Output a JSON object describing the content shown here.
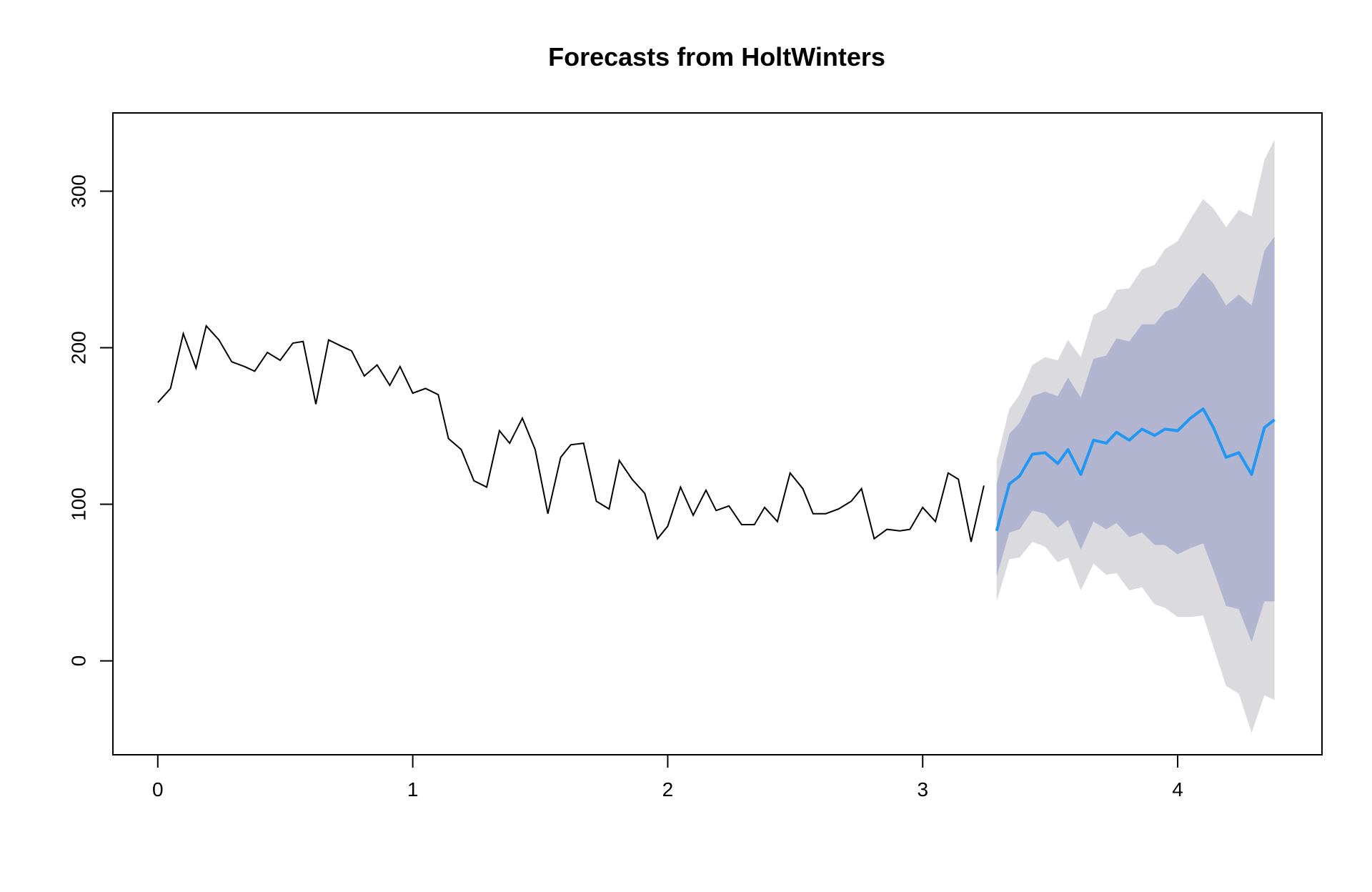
{
  "chart_data": {
    "type": "line",
    "title": "Forecasts from HoltWinters",
    "xlabel": "",
    "ylabel": "",
    "xlim": [
      -0.176,
      4.566
    ],
    "ylim": [
      -60,
      350
    ],
    "x_ticks": [
      0,
      1,
      2,
      3,
      4
    ],
    "y_ticks": [
      0,
      100,
      200,
      300
    ],
    "grid": false,
    "legend": "none",
    "colors": {
      "observed": "#000000",
      "forecast": "#2196F3",
      "band80": "#B1B5CF",
      "band95": "#DBDBDF"
    },
    "series": [
      {
        "role": "observed",
        "x": [
          0.0,
          0.05,
          0.1,
          0.15,
          0.19,
          0.24,
          0.29,
          0.34,
          0.38,
          0.43,
          0.48,
          0.53,
          0.57,
          0.62,
          0.67,
          0.72,
          0.76,
          0.81,
          0.86,
          0.91,
          0.95,
          1.0,
          1.05,
          1.1,
          1.14,
          1.19,
          1.24,
          1.29,
          1.34,
          1.38,
          1.43,
          1.48,
          1.53,
          1.58,
          1.62,
          1.67,
          1.72,
          1.77,
          1.81,
          1.86,
          1.91,
          1.96,
          2.0,
          2.05,
          2.1,
          2.15,
          2.19,
          2.24,
          2.29,
          2.34,
          2.38,
          2.43,
          2.48,
          2.53,
          2.57,
          2.62,
          2.67,
          2.72,
          2.76,
          2.81,
          2.86,
          2.91,
          2.95,
          3.0,
          3.05,
          3.1,
          3.14,
          3.19,
          3.24
        ],
        "values": [
          165,
          174,
          209,
          187,
          214,
          205,
          191,
          188,
          185,
          197,
          192,
          203,
          204,
          164,
          205,
          201,
          198,
          182,
          189,
          176,
          188,
          171,
          174,
          170,
          142,
          135,
          115,
          111,
          147,
          139,
          155,
          135,
          94,
          130,
          138,
          139,
          102,
          97,
          128,
          116,
          107,
          78,
          86,
          111,
          93,
          109,
          96,
          99,
          87,
          87,
          98,
          89,
          120,
          110,
          94,
          94,
          97,
          102,
          110,
          78,
          84,
          83,
          84,
          98,
          89,
          120,
          116,
          76,
          112
        ]
      },
      {
        "role": "forecast",
        "x": [
          3.29,
          3.34,
          3.38,
          3.43,
          3.48,
          3.53,
          3.57,
          3.62,
          3.67,
          3.72,
          3.76,
          3.81,
          3.86,
          3.91,
          3.95,
          4.0,
          4.05,
          4.1,
          4.14,
          4.19,
          4.24,
          4.29,
          4.34,
          4.38
        ],
        "values": [
          83,
          113,
          118,
          132,
          133,
          126,
          135,
          119,
          141,
          139,
          146,
          141,
          148,
          144,
          148,
          147,
          155,
          161,
          149,
          130,
          133,
          119,
          149,
          154
        ],
        "lo80": [
          54,
          82,
          84,
          96,
          94,
          85,
          90,
          71,
          89,
          84,
          88,
          79,
          82,
          74,
          74,
          68,
          72,
          75,
          58,
          35,
          33,
          12,
          38,
          38
        ],
        "hi80": [
          113,
          145,
          152,
          169,
          172,
          169,
          181,
          168,
          193,
          195,
          206,
          204,
          215,
          215,
          223,
          226,
          238,
          248,
          241,
          227,
          234,
          227,
          262,
          271
        ],
        "lo95": [
          38,
          65,
          66,
          76,
          73,
          63,
          66,
          45,
          62,
          55,
          56,
          45,
          47,
          36,
          34,
          28,
          28,
          29,
          9,
          -16,
          -21,
          -46,
          -22,
          -25
        ],
        "hi95": [
          128,
          161,
          170,
          189,
          194,
          192,
          205,
          194,
          221,
          225,
          237,
          238,
          250,
          253,
          263,
          268,
          282,
          295,
          289,
          277,
          288,
          284,
          320,
          333
        ]
      }
    ]
  }
}
